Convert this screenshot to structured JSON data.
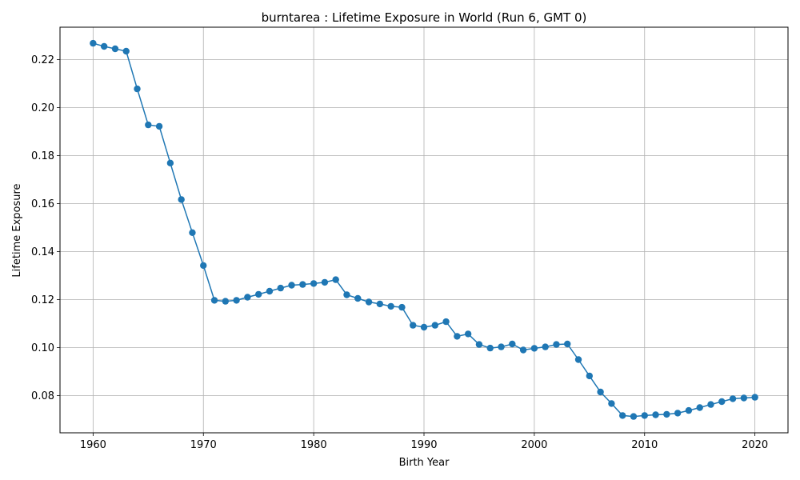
{
  "chart_data": {
    "type": "line",
    "title": "burntarea : Lifetime Exposure in World (Run 6, GMT 0)",
    "xlabel": "Birth Year",
    "ylabel": "Lifetime Exposure",
    "xlim": [
      1957,
      2023
    ],
    "ylim": [
      0.0645,
      0.2335
    ],
    "grid": true,
    "marker": "circle",
    "color": "#1f77b4",
    "x_ticks": [
      1960,
      1970,
      1980,
      1990,
      2000,
      2010,
      2020
    ],
    "x_tick_labels": [
      "1960",
      "1970",
      "1980",
      "1990",
      "2000",
      "2010",
      "2020"
    ],
    "y_ticks": [
      0.08,
      0.1,
      0.12,
      0.14,
      0.16,
      0.18,
      0.2,
      0.22
    ],
    "y_tick_labels": [
      "0.08",
      "0.10",
      "0.12",
      "0.14",
      "0.16",
      "0.18",
      "0.20",
      "0.22"
    ],
    "series": [
      {
        "name": "Lifetime Exposure",
        "x": [
          1960,
          1961,
          1962,
          1963,
          1964,
          1965,
          1966,
          1967,
          1968,
          1969,
          1970,
          1971,
          1972,
          1973,
          1974,
          1975,
          1976,
          1977,
          1978,
          1979,
          1980,
          1981,
          1982,
          1983,
          1984,
          1985,
          1986,
          1987,
          1988,
          1989,
          1990,
          1991,
          1992,
          1993,
          1994,
          1995,
          1996,
          1997,
          1998,
          1999,
          2000,
          2001,
          2002,
          2003,
          2004,
          2005,
          2006,
          2007,
          2008,
          2009,
          2010,
          2011,
          2012,
          2013,
          2014,
          2015,
          2016,
          2017,
          2018,
          2019,
          2020
        ],
        "values": [
          0.2268,
          0.2255,
          0.2245,
          0.2235,
          0.2078,
          0.1928,
          0.1922,
          0.1769,
          0.1617,
          0.1479,
          0.1342,
          0.1197,
          0.1193,
          0.1197,
          0.121,
          0.1222,
          0.1235,
          0.1248,
          0.126,
          0.1263,
          0.1267,
          0.1272,
          0.1283,
          0.122,
          0.1205,
          0.119,
          0.1182,
          0.1172,
          0.1168,
          0.1093,
          0.1085,
          0.1093,
          0.1108,
          0.1047,
          0.1057,
          0.1013,
          0.0998,
          0.1003,
          0.1015,
          0.099,
          0.0997,
          0.1003,
          0.1013,
          0.1015,
          0.095,
          0.0882,
          0.0815,
          0.0767,
          0.0717,
          0.0713,
          0.0717,
          0.072,
          0.0722,
          0.0727,
          0.0738,
          0.075,
          0.0763,
          0.0775,
          0.0787,
          0.079,
          0.0793
        ]
      }
    ]
  }
}
